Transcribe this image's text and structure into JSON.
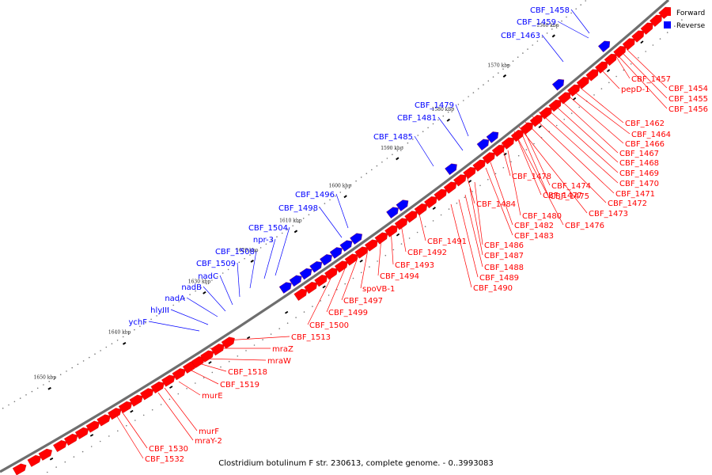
{
  "caption": "Clostridium botulinum F str. 230613, complete genome. - 0..3993083",
  "legend": [
    {
      "label": "Forward",
      "color": "#ff0000"
    },
    {
      "label": "Reverse",
      "color": "#0000ff"
    }
  ],
  "colors": {
    "forward": "#ff0000",
    "reverse": "#0000ff",
    "backbone": "#777777"
  },
  "kbp_ticks": [
    "1560 kbp",
    "1570 kbp",
    "1580 kbp",
    "1590 kbp",
    "1600 kbp",
    "1610 kbp",
    "1620 kbp",
    "1630 kbp",
    "1640 kbp",
    "1650 kbp"
  ],
  "reverse_labels": [
    "CBF_1458",
    "CBF_1459",
    "CBF_1463",
    "CBF_1479",
    "CBF_1481",
    "CBF_1485",
    "CBF_1496",
    "CBF_1498",
    "CBF_1504",
    "npr-3",
    "CBF_1508",
    "CBF_1509",
    "nadC",
    "nadB",
    "nadA",
    "hlyIII",
    "ychF"
  ],
  "forward_labels": [
    "CBF_1457",
    "CBF_1454",
    "pepD-1",
    "CBF_1455",
    "CBF_1456",
    "CBF_1462",
    "CBF_1464",
    "CBF_1466",
    "CBF_1467",
    "CBF_1468",
    "CBF_1469",
    "CBF_1478",
    "CBF_1474",
    "CBF_1470",
    "CBF_1471",
    "CBF_1477",
    "CBF_1475",
    "CBF_1472",
    "CBF_1484",
    "CBF_1473",
    "CBF_1480",
    "CBF_1476",
    "CBF_1482",
    "CBF_1483",
    "CBF_1491",
    "CBF_1486",
    "CBF_1492",
    "CBF_1487",
    "CBF_1493",
    "CBF_1488",
    "CBF_1494",
    "CBF_1489",
    "spoVB-1",
    "CBF_1490",
    "CBF_1497",
    "CBF_1499",
    "CBF_1500",
    "CBF_1513",
    "mraZ",
    "mraW",
    "CBF_1518",
    "CBF_1519",
    "murE",
    "murF",
    "mraY-2",
    "CBF_1530",
    "CBF_1532"
  ]
}
